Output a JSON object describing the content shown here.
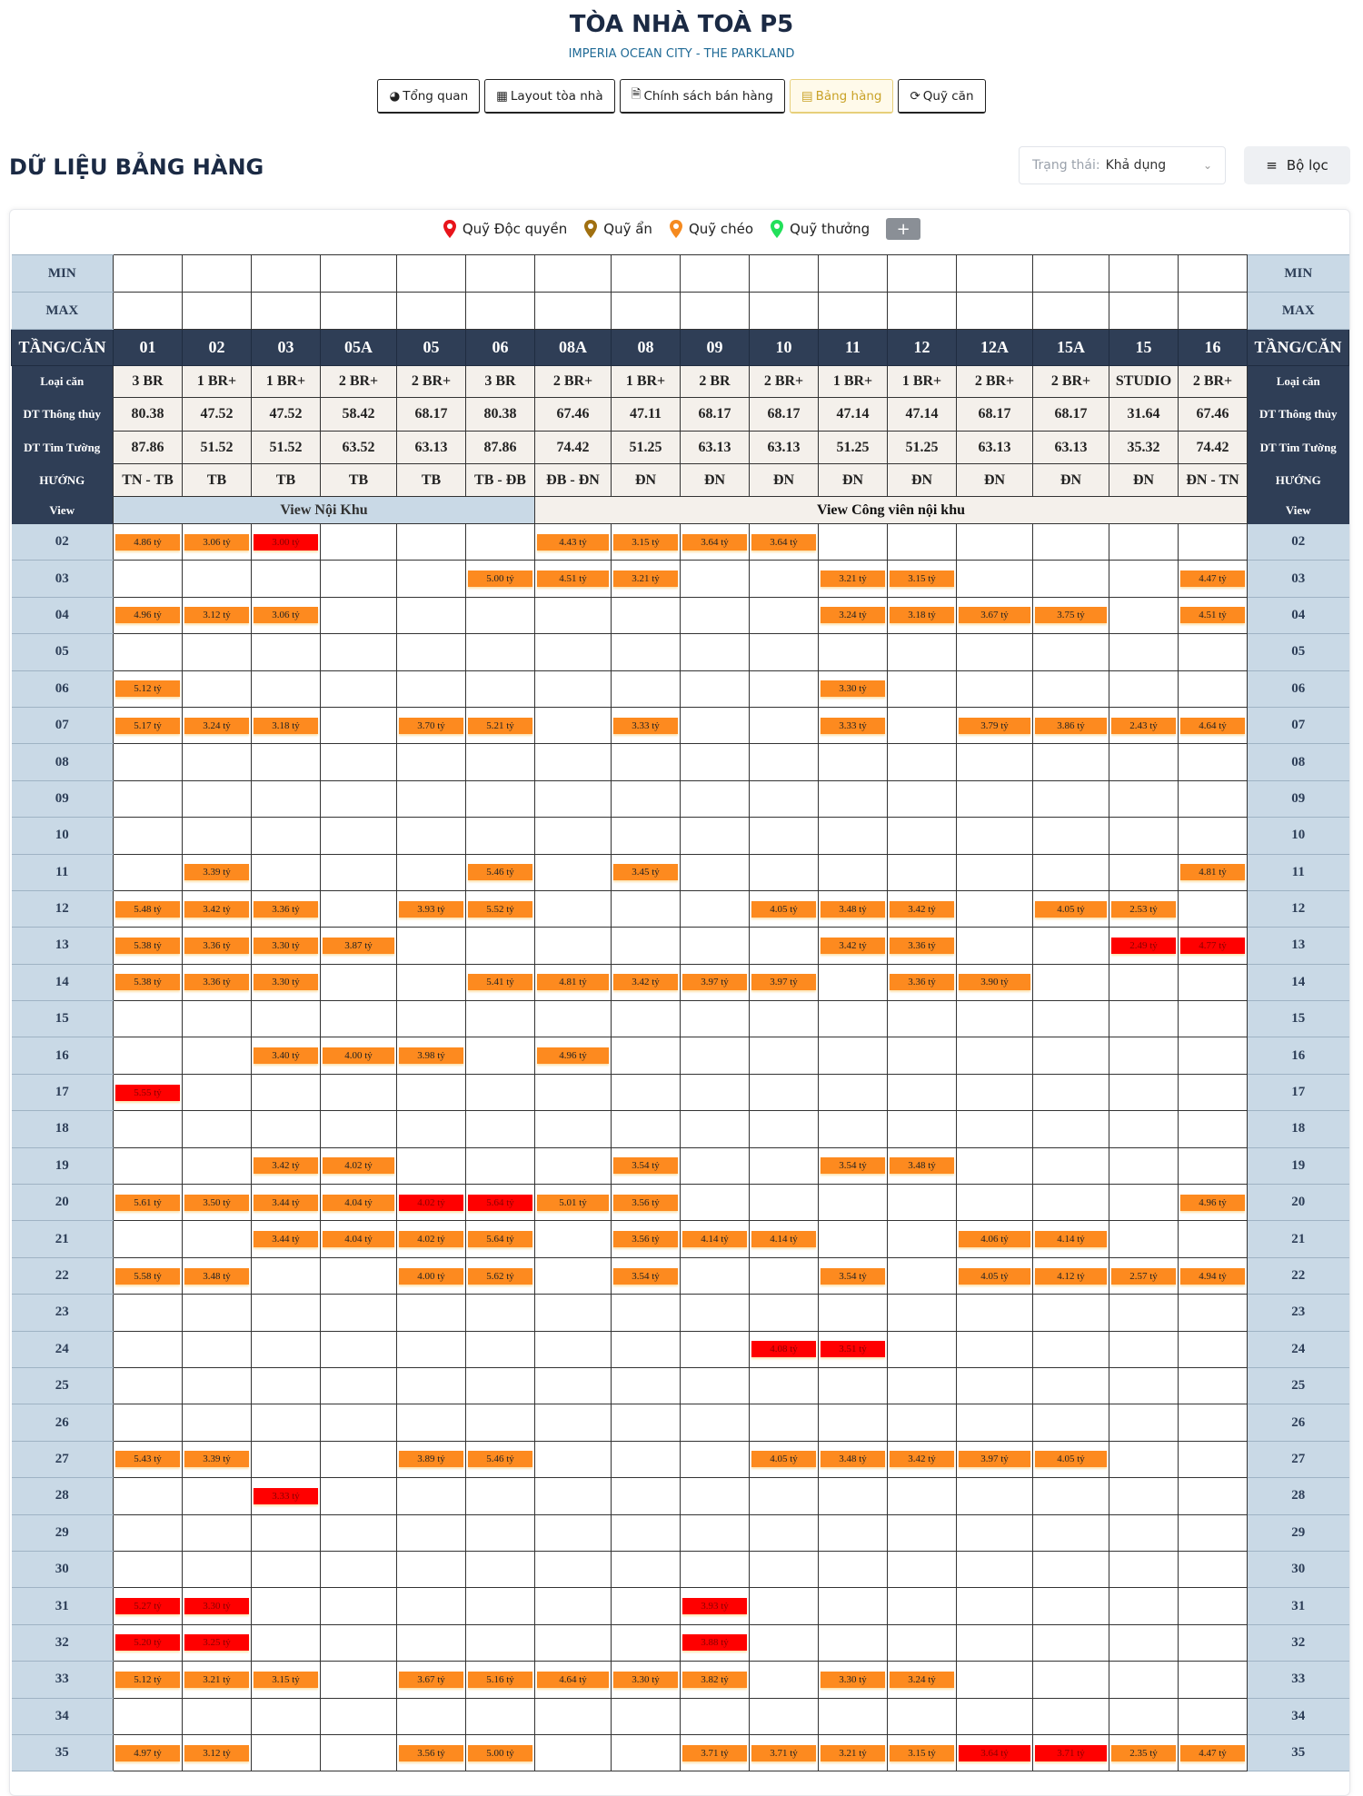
{
  "header": {
    "title": "TÒA NHÀ TOÀ P5",
    "subtitle": "IMPERIA OCEAN CITY - THE PARKLAND"
  },
  "tabs": [
    {
      "label": "Tổng quan",
      "icon": "globe-icon",
      "active": false
    },
    {
      "label": "Layout tòa nhà",
      "icon": "layout-icon",
      "active": false
    },
    {
      "label": "Chính sách bán hàng",
      "icon": "document-icon",
      "active": false
    },
    {
      "label": "Bảng hàng",
      "icon": "list-icon",
      "active": true
    },
    {
      "label": "Quỹ căn",
      "icon": "stack-icon",
      "active": false
    }
  ],
  "section_title": "DỮ LIỆU BẢNG HÀNG",
  "status_filter": {
    "label": "Trạng thái:",
    "value": "Khả dụng"
  },
  "filter_button": "Bộ lọc",
  "legend": [
    {
      "label": "Quỹ Độc quyền",
      "color": "#e8141b"
    },
    {
      "label": "Quỹ ẩn",
      "color": "#a07010"
    },
    {
      "label": "Quỹ chéo",
      "color": "#f58a1f"
    },
    {
      "label": "Quỹ thưởng",
      "color": "#22e05a"
    }
  ],
  "legend_add": "+",
  "colors": {
    "available": "#fd8a1f",
    "exclusive": "#ff0000",
    "header": "#2f3e56",
    "side": "#c9d9e6"
  },
  "table": {
    "min_label": "MIN",
    "max_label": "MAX",
    "floor_header": "TẦNG/CĂN",
    "columns": [
      "01",
      "02",
      "03",
      "05A",
      "05",
      "06",
      "08A",
      "08",
      "09",
      "10",
      "11",
      "12",
      "12A",
      "15A",
      "15",
      "16"
    ],
    "info_rows": [
      {
        "label": "Loại căn",
        "values": [
          "3 BR",
          "1 BR+",
          "1 BR+",
          "2 BR+",
          "2 BR+",
          "3 BR",
          "2 BR+",
          "1 BR+",
          "2 BR",
          "2 BR+",
          "1 BR+",
          "1 BR+",
          "2 BR+",
          "2 BR+",
          "STUDIO",
          "2 BR+"
        ]
      },
      {
        "label": "DT Thông thủy",
        "values": [
          "80.38",
          "47.52",
          "47.52",
          "58.42",
          "68.17",
          "80.38",
          "67.46",
          "47.11",
          "68.17",
          "68.17",
          "47.14",
          "47.14",
          "68.17",
          "68.17",
          "31.64",
          "67.46"
        ]
      },
      {
        "label": "DT Tim Tường",
        "values": [
          "87.86",
          "51.52",
          "51.52",
          "63.52",
          "63.13",
          "87.86",
          "74.42",
          "51.25",
          "63.13",
          "63.13",
          "51.25",
          "51.25",
          "63.13",
          "63.13",
          "35.32",
          "74.42"
        ]
      },
      {
        "label": "HƯỚNG",
        "values": [
          "TN - TB",
          "TB",
          "TB",
          "TB",
          "TB",
          "TB - ĐB",
          "ĐB - ĐN",
          "ĐN",
          "ĐN",
          "ĐN",
          "ĐN",
          "ĐN",
          "ĐN",
          "ĐN",
          "ĐN",
          "ĐN - TN"
        ]
      }
    ],
    "view_label": "View",
    "views": [
      {
        "label": "View Nội Khu",
        "span": 6
      },
      {
        "label": "View Công viên nội khu",
        "span": 10
      }
    ],
    "price_unit": "tỷ",
    "floors": [
      {
        "floor": "02",
        "cells": [
          "4.86",
          "3.06",
          "3.00",
          "",
          "",
          "",
          "4.43",
          "3.15",
          "3.64",
          "3.64",
          "",
          "",
          "",
          "",
          "",
          ""
        ],
        "red": [
          2
        ]
      },
      {
        "floor": "03",
        "cells": [
          "",
          "",
          "",
          "",
          "",
          "5.00",
          "4.51",
          "3.21",
          "",
          "",
          "3.21",
          "3.15",
          "",
          "",
          "",
          "4.47"
        ],
        "red": []
      },
      {
        "floor": "04",
        "cells": [
          "4.96",
          "3.12",
          "3.06",
          "",
          "",
          "",
          "",
          "",
          "",
          "",
          "3.24",
          "3.18",
          "3.67",
          "3.75",
          "",
          "4.51"
        ],
        "red": []
      },
      {
        "floor": "05",
        "cells": [
          "",
          "",
          "",
          "",
          "",
          "",
          "",
          "",
          "",
          "",
          "",
          "",
          "",
          "",
          "",
          ""
        ],
        "red": []
      },
      {
        "floor": "06",
        "cells": [
          "5.12",
          "",
          "",
          "",
          "",
          "",
          "",
          "",
          "",
          "",
          "3.30",
          "",
          "",
          "",
          "",
          ""
        ],
        "red": []
      },
      {
        "floor": "07",
        "cells": [
          "5.17",
          "3.24",
          "3.18",
          "",
          "3.70",
          "5.21",
          "",
          "3.33",
          "",
          "",
          "3.33",
          "",
          "3.79",
          "3.86",
          "2.43",
          "4.64"
        ],
        "red": []
      },
      {
        "floor": "08",
        "cells": [
          "",
          "",
          "",
          "",
          "",
          "",
          "",
          "",
          "",
          "",
          "",
          "",
          "",
          "",
          "",
          ""
        ],
        "red": []
      },
      {
        "floor": "09",
        "cells": [
          "",
          "",
          "",
          "",
          "",
          "",
          "",
          "",
          "",
          "",
          "",
          "",
          "",
          "",
          "",
          ""
        ],
        "red": []
      },
      {
        "floor": "10",
        "cells": [
          "",
          "",
          "",
          "",
          "",
          "",
          "",
          "",
          "",
          "",
          "",
          "",
          "",
          "",
          "",
          ""
        ],
        "red": []
      },
      {
        "floor": "11",
        "cells": [
          "",
          "3.39",
          "",
          "",
          "",
          "5.46",
          "",
          "3.45",
          "",
          "",
          "",
          "",
          "",
          "",
          "",
          "4.81"
        ],
        "red": []
      },
      {
        "floor": "12",
        "cells": [
          "5.48",
          "3.42",
          "3.36",
          "",
          "3.93",
          "5.52",
          "",
          "",
          "",
          "4.05",
          "3.48",
          "3.42",
          "",
          "4.05",
          "2.53",
          ""
        ],
        "red": []
      },
      {
        "floor": "13",
        "cells": [
          "5.38",
          "3.36",
          "3.30",
          "3.87",
          "",
          "",
          "",
          "",
          "",
          "",
          "3.42",
          "3.36",
          "",
          "",
          "2.49",
          "4.77"
        ],
        "red": [
          14,
          15
        ]
      },
      {
        "floor": "14",
        "cells": [
          "5.38",
          "3.36",
          "3.30",
          "",
          "",
          "5.41",
          "4.81",
          "3.42",
          "3.97",
          "3.97",
          "",
          "3.36",
          "3.90",
          "",
          "",
          ""
        ],
        "red": []
      },
      {
        "floor": "15",
        "cells": [
          "",
          "",
          "",
          "",
          "",
          "",
          "",
          "",
          "",
          "",
          "",
          "",
          "",
          "",
          "",
          ""
        ],
        "red": []
      },
      {
        "floor": "16",
        "cells": [
          "",
          "",
          "3.40",
          "4.00",
          "3.98",
          "",
          "4.96",
          "",
          "",
          "",
          "",
          "",
          "",
          "",
          "",
          ""
        ],
        "red": []
      },
      {
        "floor": "17",
        "cells": [
          "5.55",
          "",
          "",
          "",
          "",
          "",
          "",
          "",
          "",
          "",
          "",
          "",
          "",
          "",
          "",
          ""
        ],
        "red": [
          0
        ]
      },
      {
        "floor": "18",
        "cells": [
          "",
          "",
          "",
          "",
          "",
          "",
          "",
          "",
          "",
          "",
          "",
          "",
          "",
          "",
          "",
          ""
        ],
        "red": []
      },
      {
        "floor": "19",
        "cells": [
          "",
          "",
          "3.42",
          "4.02",
          "",
          "",
          "",
          "3.54",
          "",
          "",
          "3.54",
          "3.48",
          "",
          "",
          "",
          ""
        ],
        "red": []
      },
      {
        "floor": "20",
        "cells": [
          "5.61",
          "3.50",
          "3.44",
          "4.04",
          "4.02",
          "5.64",
          "5.01",
          "3.56",
          "",
          "",
          "",
          "",
          "",
          "",
          "",
          "4.96"
        ],
        "red": [
          4,
          5
        ]
      },
      {
        "floor": "21",
        "cells": [
          "",
          "",
          "3.44",
          "4.04",
          "4.02",
          "5.64",
          "",
          "3.56",
          "4.14",
          "4.14",
          "",
          "",
          "4.06",
          "4.14",
          "",
          ""
        ],
        "red": []
      },
      {
        "floor": "22",
        "cells": [
          "5.58",
          "3.48",
          "",
          "",
          "4.00",
          "5.62",
          "",
          "3.54",
          "",
          "",
          "3.54",
          "",
          "4.05",
          "4.12",
          "2.57",
          "4.94"
        ],
        "red": []
      },
      {
        "floor": "23",
        "cells": [
          "",
          "",
          "",
          "",
          "",
          "",
          "",
          "",
          "",
          "",
          "",
          "",
          "",
          "",
          "",
          ""
        ],
        "red": []
      },
      {
        "floor": "24",
        "cells": [
          "",
          "",
          "",
          "",
          "",
          "",
          "",
          "",
          "",
          "4.08",
          "3.51",
          "",
          "",
          "",
          "",
          ""
        ],
        "red": [
          9,
          10
        ]
      },
      {
        "floor": "25",
        "cells": [
          "",
          "",
          "",
          "",
          "",
          "",
          "",
          "",
          "",
          "",
          "",
          "",
          "",
          "",
          "",
          ""
        ],
        "red": []
      },
      {
        "floor": "26",
        "cells": [
          "",
          "",
          "",
          "",
          "",
          "",
          "",
          "",
          "",
          "",
          "",
          "",
          "",
          "",
          "",
          ""
        ],
        "red": []
      },
      {
        "floor": "27",
        "cells": [
          "5.43",
          "3.39",
          "",
          "",
          "3.89",
          "5.46",
          "",
          "",
          "",
          "4.05",
          "3.48",
          "3.42",
          "3.97",
          "4.05",
          "",
          ""
        ],
        "red": []
      },
      {
        "floor": "28",
        "cells": [
          "",
          "",
          "3.33",
          "",
          "",
          "",
          "",
          "",
          "",
          "",
          "",
          "",
          "",
          "",
          "",
          ""
        ],
        "red": [
          2
        ]
      },
      {
        "floor": "29",
        "cells": [
          "",
          "",
          "",
          "",
          "",
          "",
          "",
          "",
          "",
          "",
          "",
          "",
          "",
          "",
          "",
          ""
        ],
        "red": []
      },
      {
        "floor": "30",
        "cells": [
          "",
          "",
          "",
          "",
          "",
          "",
          "",
          "",
          "",
          "",
          "",
          "",
          "",
          "",
          "",
          ""
        ],
        "red": []
      },
      {
        "floor": "31",
        "cells": [
          "5.27",
          "3.30",
          "",
          "",
          "",
          "",
          "",
          "",
          "3.93",
          "",
          "",
          "",
          "",
          "",
          "",
          ""
        ],
        "red": [
          0,
          1,
          8
        ]
      },
      {
        "floor": "32",
        "cells": [
          "5.20",
          "3.25",
          "",
          "",
          "",
          "",
          "",
          "",
          "3.88",
          "",
          "",
          "",
          "",
          "",
          "",
          ""
        ],
        "red": [
          0,
          1,
          8
        ]
      },
      {
        "floor": "33",
        "cells": [
          "5.12",
          "3.21",
          "3.15",
          "",
          "3.67",
          "5.16",
          "4.64",
          "3.30",
          "3.82",
          "",
          "3.30",
          "3.24",
          "",
          "",
          "",
          ""
        ],
        "red": []
      },
      {
        "floor": "34",
        "cells": [
          "",
          "",
          "",
          "",
          "",
          "",
          "",
          "",
          "",
          "",
          "",
          "",
          "",
          "",
          "",
          ""
        ],
        "red": []
      },
      {
        "floor": "35",
        "cells": [
          "4.97",
          "3.12",
          "",
          "",
          "3.56",
          "5.00",
          "",
          "",
          "3.71",
          "3.71",
          "3.21",
          "3.15",
          "3.64",
          "3.71",
          "2.35",
          "4.47"
        ],
        "red": [
          12,
          13
        ]
      }
    ]
  }
}
